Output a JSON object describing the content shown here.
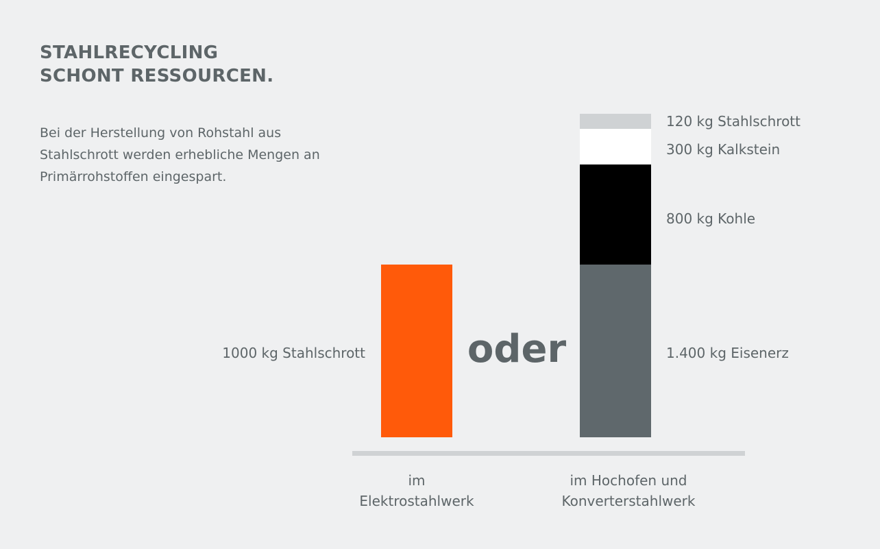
{
  "title": [
    "STAHLRECYCLING",
    "SCHONT RESSOURCEN."
  ],
  "intro": [
    "Bei der Herstellung von Rohstahl aus",
    "Stahlschrott werden erhebliche Mengen an",
    "Primärrohstoffen eingespart."
  ],
  "connector": "oder",
  "chart_data": {
    "type": "bar",
    "stacked": true,
    "unit": "kg",
    "categories": [
      {
        "lines": [
          "im",
          "Elektrostahlwerk"
        ]
      },
      {
        "lines": [
          "im Hochofen und",
          "Konverterstahlwerk"
        ]
      }
    ],
    "series": [
      {
        "category": 0,
        "segments": [
          {
            "name": "Stahlschrott",
            "value": 1000,
            "label": "1000 kg Stahlschrott",
            "color": "#ff5a0a"
          }
        ]
      },
      {
        "category": 1,
        "segments": [
          {
            "name": "Eisenerz",
            "value": 1400,
            "label": "1.400 kg Eisenerz",
            "color": "#5f686c"
          },
          {
            "name": "Kohle",
            "value": 800,
            "label": "800 kg Kohle",
            "color": "#000000"
          },
          {
            "name": "Kalkstein",
            "value": 300,
            "label": "300 kg Kalkstein",
            "color": "#ffffff"
          },
          {
            "name": "Stahlschrott",
            "value": 120,
            "label": "120 kg Stahlschrott",
            "color": "#cfd2d4"
          }
        ]
      }
    ],
    "axis_color": "#cfd2d4",
    "grid": false,
    "legend": "none"
  }
}
